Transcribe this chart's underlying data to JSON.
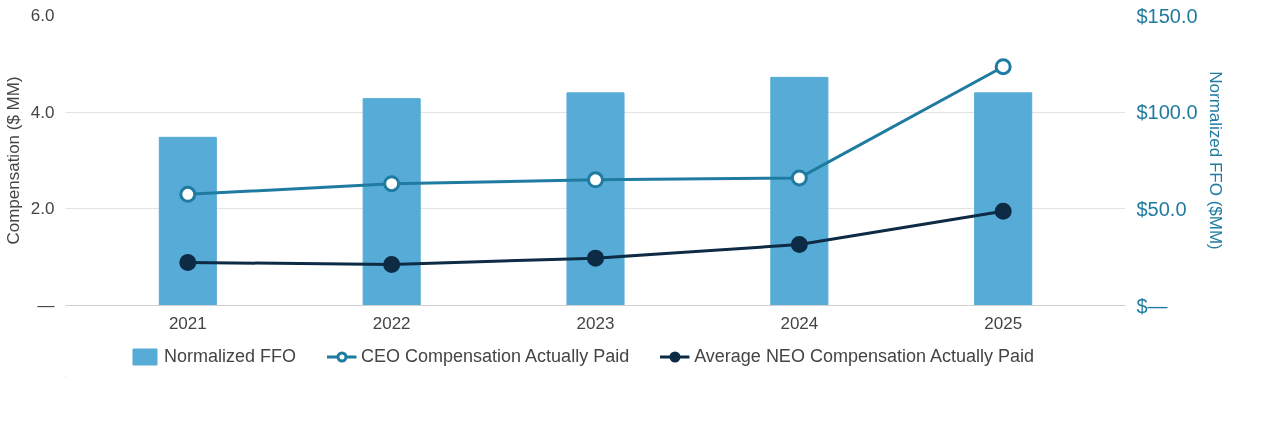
{
  "chart_data": {
    "type": "line",
    "categories": [
      "2021",
      "2022",
      "2023",
      "2024",
      "2025"
    ],
    "ylabel": "Compensation ($ MM)",
    "y2label": "Normalized FFO ($MM)",
    "ylim": [
      0,
      6
    ],
    "yticks": [
      {
        "value": 0,
        "label": "—"
      },
      {
        "value": 2,
        "label": "2.0"
      },
      {
        "value": 4,
        "label": "4.0"
      },
      {
        "value": 6,
        "label": "6.0"
      }
    ],
    "y2lim": [
      0,
      150
    ],
    "y2ticks": [
      {
        "value": 0,
        "label": "$—"
      },
      {
        "value": 50,
        "label": "$50.0"
      },
      {
        "value": 100,
        "label": "$100.0"
      },
      {
        "value": 150,
        "label": "$150.0"
      }
    ],
    "grid": "y",
    "legend": "bottom",
    "marker": "circle",
    "series": [
      {
        "name": "Normalized FFO",
        "type": "bar",
        "axis": "y2",
        "color": "#56acd6",
        "values": [
          87,
          107,
          110,
          118,
          110
        ]
      },
      {
        "name": "CEO Compensation Actually Paid",
        "color": "#1f7ba0",
        "values": [
          2.3,
          2.52,
          2.6,
          2.64,
          4.94
        ]
      },
      {
        "name": "Average NEO Compensation Actually Paid",
        "color": "#0d2b45",
        "values": [
          0.89,
          0.85,
          0.98,
          1.26,
          1.95
        ]
      }
    ]
  }
}
